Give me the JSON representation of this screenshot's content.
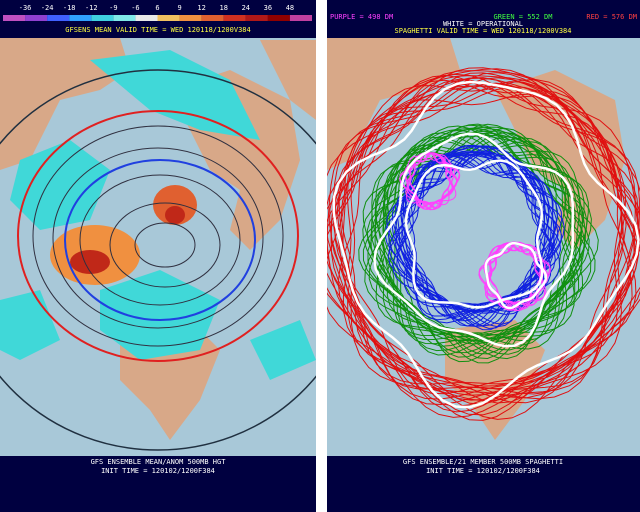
{
  "left_panel": {
    "colorbar": {
      "labels": [
        "-36",
        "-24",
        "-18",
        "-12",
        "-9",
        "-6",
        "6",
        "9",
        "12",
        "18",
        "24",
        "36",
        "48"
      ],
      "colors": [
        "#c050c0",
        "#9040d0",
        "#4060ff",
        "#30a0ff",
        "#40d0e0",
        "#80e8e8",
        "#e8e8e8",
        "#f0c060",
        "#f09040",
        "#e06030",
        "#d03020",
        "#b01818",
        "#900000",
        "#c040a0"
      ]
    },
    "header": "GFSENS MEAN VALID TIME = WED 120118/1200V384",
    "footer": [
      "GFS ENSEMBLE MEAN/ANOM 500MB HGT",
      "INIT TIME = 120102/1200F384"
    ]
  },
  "right_panel": {
    "legend": {
      "purple": "PURPLE = 498 DM",
      "green": "GREEN = 552 DM",
      "red": "RED = 576 DM",
      "white": "WHITE = OPERATIONAL"
    },
    "header": "SPAGHETTI VALID TIME = WED 120118/1200V384",
    "footer": [
      "GFS ENSEMBLE/21 MEMBER 500MB SPAGHETTI",
      "INIT TIME = 120102/1200F384"
    ]
  }
}
